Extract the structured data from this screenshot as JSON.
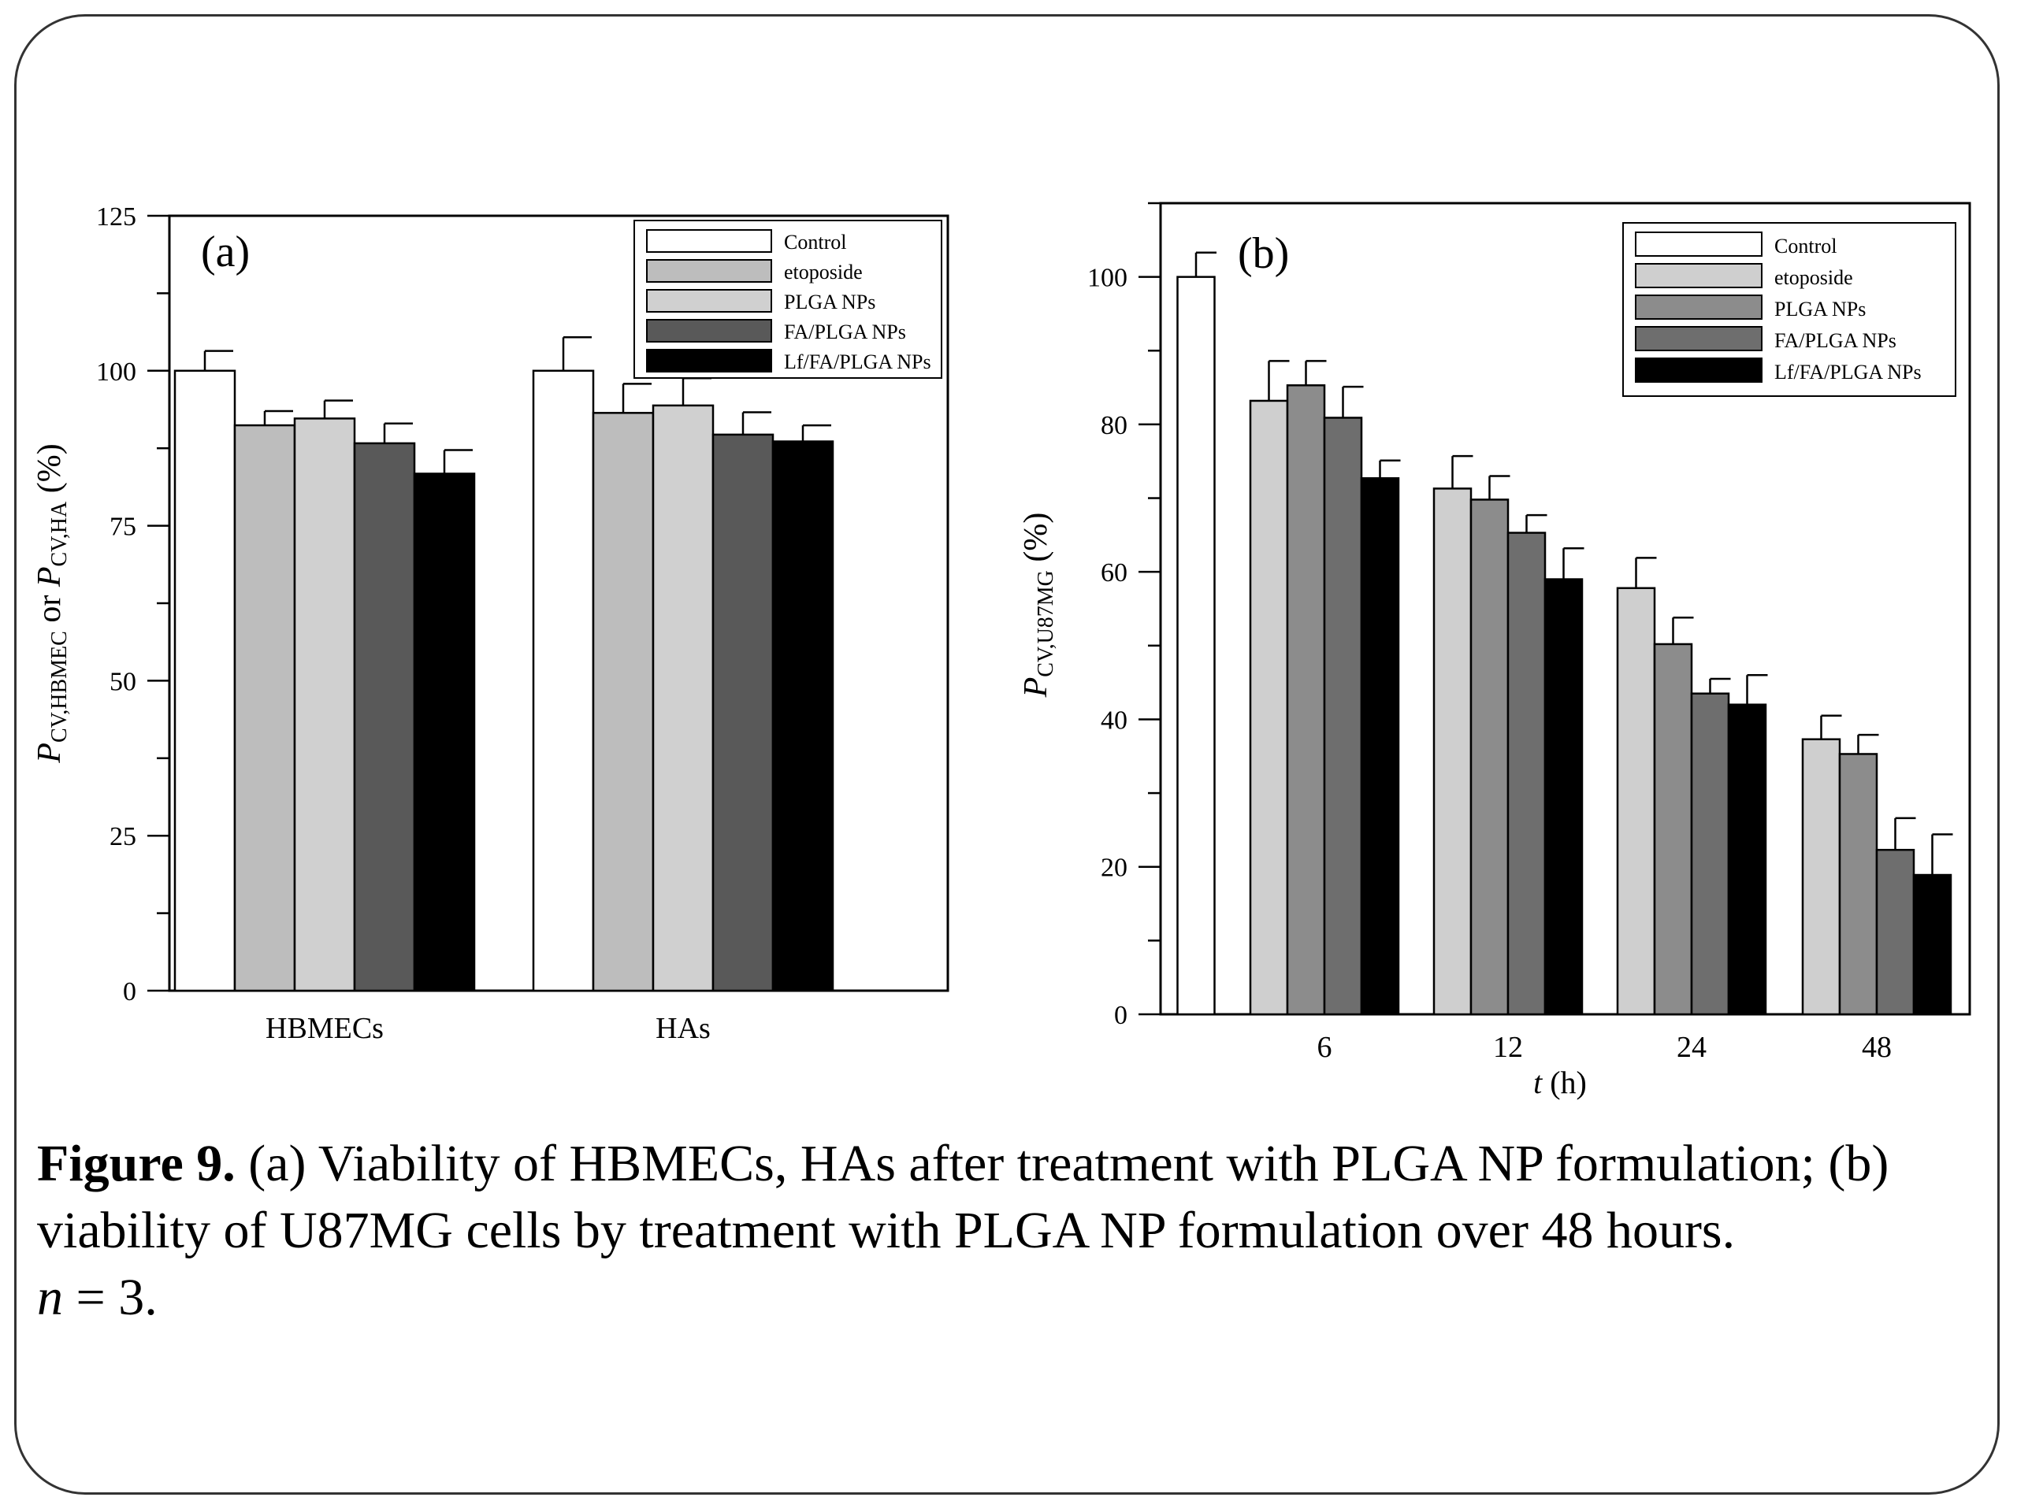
{
  "caption": {
    "label": "Figure 9.",
    "text": "(a) Viability of HBMECs, HAs after treatment with PLGA NP formulation; (b) viability of U87MG cells by treatment with PLGA NP formulation over 48 hours.",
    "n_var": "n",
    "n_text": " = 3."
  },
  "chart_data": [
    {
      "type": "bar",
      "panel": "(a)",
      "categories": [
        "HBMECs",
        "HAs"
      ],
      "ylabel": {
        "p": "P",
        "sub1": "CV,HBMEC",
        "mid": " or ",
        "p2": "P",
        "sub2": "CV,HA",
        "unit": " (%)"
      },
      "ylim": [
        0,
        125
      ],
      "yticks": [
        0,
        25,
        50,
        75,
        100,
        125
      ],
      "legend_position": "top-right",
      "series": [
        {
          "name": "Control",
          "color": "#ffffff",
          "values": [
            100,
            100
          ],
          "errors": [
            3.2,
            5.4
          ]
        },
        {
          "name": "etoposide",
          "color": "#bdbdbd",
          "values": [
            91.2,
            93.2
          ],
          "errors": [
            2.3,
            4.7
          ]
        },
        {
          "name": "PLGA NPs",
          "color": "#d0d0d0",
          "values": [
            92.3,
            94.4
          ],
          "errors": [
            2.9,
            4.4
          ]
        },
        {
          "name": "FA/PLGA NPs",
          "color": "#595959",
          "values": [
            88.3,
            89.7
          ],
          "errors": [
            3.2,
            3.6
          ]
        },
        {
          "name": "Lf/FA/PLGA NPs",
          "color": "#000000",
          "values": [
            83.4,
            88.6
          ],
          "errors": [
            3.8,
            2.6
          ]
        }
      ]
    },
    {
      "type": "bar",
      "panel": "(b)",
      "categories": [
        "",
        "6",
        "12",
        "24",
        "48"
      ],
      "xlabel": {
        "var": "t",
        "unit": " (h)"
      },
      "ylabel": {
        "p": "P",
        "sub": "CV,U87MG",
        "unit": " (%)"
      },
      "ylim": [
        0,
        110
      ],
      "yticks": [
        0,
        20,
        40,
        60,
        80,
        100
      ],
      "legend_position": "top-right",
      "series": [
        {
          "name": "Control",
          "color": "#ffffff",
          "values": [
            100,
            null,
            null,
            null,
            null
          ],
          "errors": [
            3.3,
            null,
            null,
            null,
            null
          ]
        },
        {
          "name": "etoposide",
          "color": "#cfcfcf",
          "values": [
            null,
            83.2,
            71.3,
            57.8,
            37.3
          ],
          "errors": [
            null,
            5.4,
            4.4,
            4.1,
            3.2
          ]
        },
        {
          "name": "PLGA NPs",
          "color": "#8c8c8c",
          "values": [
            null,
            85.3,
            69.8,
            50.2,
            35.3
          ],
          "errors": [
            null,
            3.3,
            3.2,
            3.6,
            2.6
          ]
        },
        {
          "name": "FA/PLGA NPs",
          "color": "#6e6e6e",
          "values": [
            null,
            80.9,
            65.3,
            43.5,
            22.3
          ],
          "errors": [
            null,
            4.2,
            2.4,
            2.0,
            4.3
          ]
        },
        {
          "name": "Lf/FA/PLGA NPs",
          "color": "#000000",
          "values": [
            null,
            72.7,
            59.0,
            42.0,
            18.9
          ],
          "errors": [
            null,
            2.4,
            4.2,
            4.0,
            5.5
          ]
        }
      ]
    }
  ]
}
